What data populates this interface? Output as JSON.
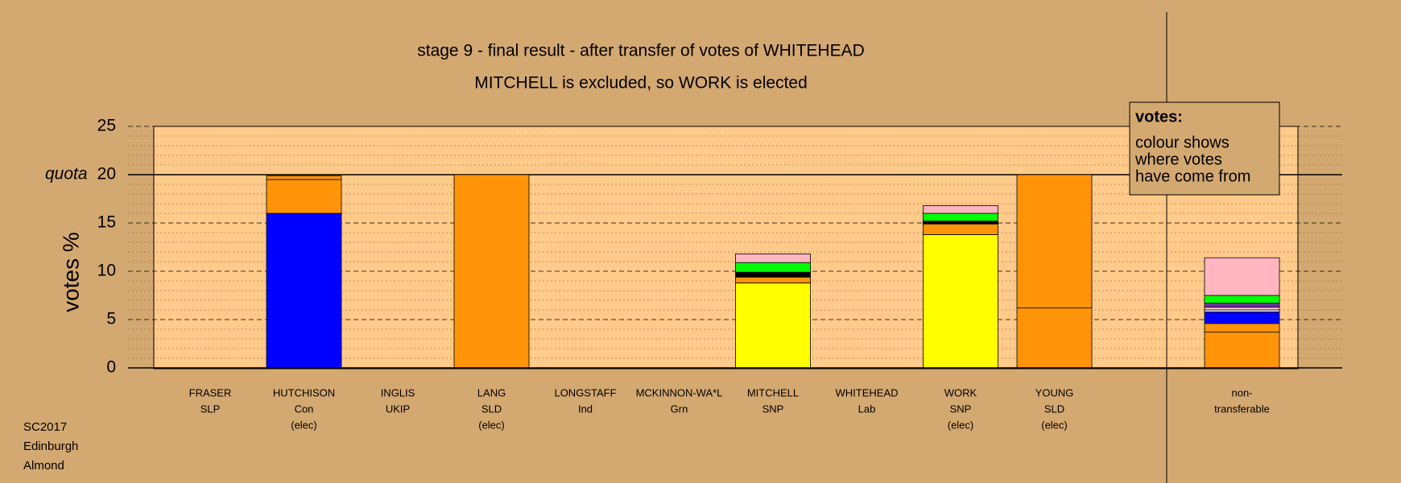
{
  "chart_data": {
    "type": "stacked-bar",
    "title": "stage 9 - final result - after transfer of votes of WHITEHEAD",
    "subtitle": "MITCHELL is excluded, so WORK is elected",
    "ylabel": "votes %",
    "ylim": [
      0,
      25
    ],
    "yticks": [
      0,
      5,
      10,
      15,
      20,
      25
    ],
    "minor_yticks": [
      1,
      2,
      3,
      4,
      6,
      7,
      8,
      9,
      11,
      12,
      13,
      14,
      16,
      17,
      18,
      19,
      21,
      22,
      23,
      24
    ],
    "quota": {
      "value": 20,
      "label": "quota"
    },
    "grid": true,
    "categories": [
      [
        "FRASER",
        "SLP"
      ],
      [
        "HUTCHISON",
        "Con",
        "(elec)"
      ],
      [
        "INGLIS",
        "UKIP"
      ],
      [
        "LANG",
        "SLD",
        "(elec)"
      ],
      [
        "LONGSTAFF",
        "Ind"
      ],
      [
        "MCKINNON-WA*L",
        "Grn"
      ],
      [
        "MITCHELL",
        "SNP"
      ],
      [
        "WHITEHEAD",
        "Lab"
      ],
      [
        "WORK",
        "SNP",
        "(elec)"
      ],
      [
        "YOUNG",
        "SLD",
        "(elec)"
      ],
      [
        "non-",
        "transferable"
      ]
    ],
    "segments": [
      [],
      [
        {
          "color": "#0000ff",
          "value": 16.0
        },
        {
          "color": "#ff9408",
          "value": 3.5
        },
        {
          "color": "#ff9408",
          "value": 0.4
        }
      ],
      [],
      [
        {
          "color": "#ff9408",
          "value": 20.0
        }
      ],
      [],
      [],
      [
        {
          "color": "#ffff00",
          "value": 8.8
        },
        {
          "color": "#ff9408",
          "value": 0.6
        },
        {
          "color": "#000000",
          "value": 0.5
        },
        {
          "color": "#00ff00",
          "value": 1.0
        },
        {
          "color": "#ffb6c1",
          "value": 0.9
        }
      ],
      [],
      [
        {
          "color": "#ffff00",
          "value": 13.8
        },
        {
          "color": "#ff9408",
          "value": 1.1
        },
        {
          "color": "#000000",
          "value": 0.3
        },
        {
          "color": "#00ff00",
          "value": 0.8
        },
        {
          "color": "#ffb6c1",
          "value": 0.8
        }
      ],
      [
        {
          "color": "#ff9408",
          "value": 6.2
        },
        {
          "color": "#ff9408",
          "value": 13.8
        }
      ],
      [
        {
          "color": "#ff9408",
          "value": 3.7
        },
        {
          "color": "#ff9408",
          "value": 0.9
        },
        {
          "color": "#0000ff",
          "value": 1.2
        },
        {
          "color": "#ffffff",
          "value": 0.2
        },
        {
          "color": "#ffb6c1",
          "value": 0.3
        },
        {
          "color": "#7030a0",
          "value": 0.4
        },
        {
          "color": "#00ff00",
          "value": 0.8
        },
        {
          "color": "#ffb6c1",
          "value": 3.9
        }
      ]
    ],
    "legend": {
      "title": "votes:",
      "lines": [
        "colour shows",
        "where votes",
        "have come from"
      ]
    },
    "footer": [
      "SC2017",
      "Edinburgh",
      "Almond"
    ]
  }
}
